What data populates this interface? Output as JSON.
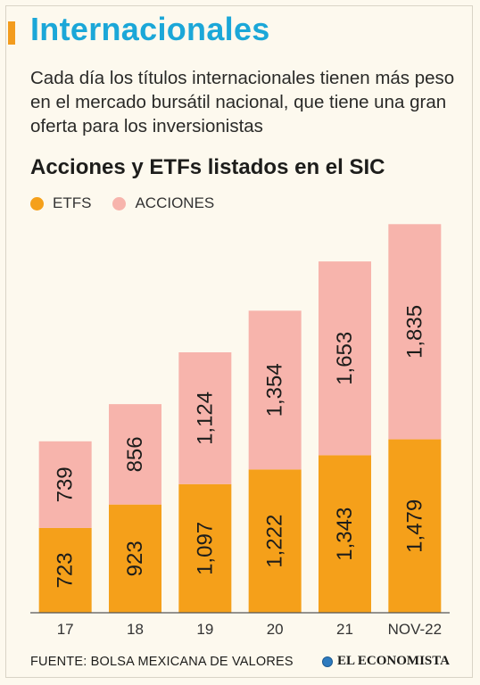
{
  "header": {
    "title": "Internacionales",
    "subtitle": "Cada día los títulos internacionales tienen más peso en el mercado bursátil nacional, que tiene una gran oferta para los inversionistas"
  },
  "chart_data": {
    "type": "bar",
    "stacked": true,
    "title": "Acciones y ETFs listados en el SIC",
    "xlabel": "",
    "ylabel": "",
    "categories": [
      "17",
      "18",
      "19",
      "20",
      "21",
      "NOV-22"
    ],
    "series": [
      {
        "name": "ETFS",
        "color": "#f5a01a",
        "values": [
          723,
          923,
          1097,
          1222,
          1343,
          1479
        ],
        "labels": [
          "723",
          "923",
          "1,097",
          "1,222",
          "1,343",
          "1,479"
        ]
      },
      {
        "name": "ACCIONES",
        "color": "#f7b4ac",
        "values": [
          739,
          856,
          1124,
          1354,
          1653,
          1835
        ],
        "labels": [
          "739",
          "856",
          "1,124",
          "1,354",
          "1,653",
          "1,835"
        ]
      }
    ],
    "ylim": [
      0,
      3400
    ],
    "grid": false,
    "legend_position": "top-left"
  },
  "footer": {
    "source": "FUENTE: BOLSA MEXICANA DE VALORES",
    "brand": "EL ECONOMISTA"
  },
  "colors": {
    "title": "#1ba7d8",
    "accent": "#f39c1e",
    "background": "#fdf9ee"
  }
}
